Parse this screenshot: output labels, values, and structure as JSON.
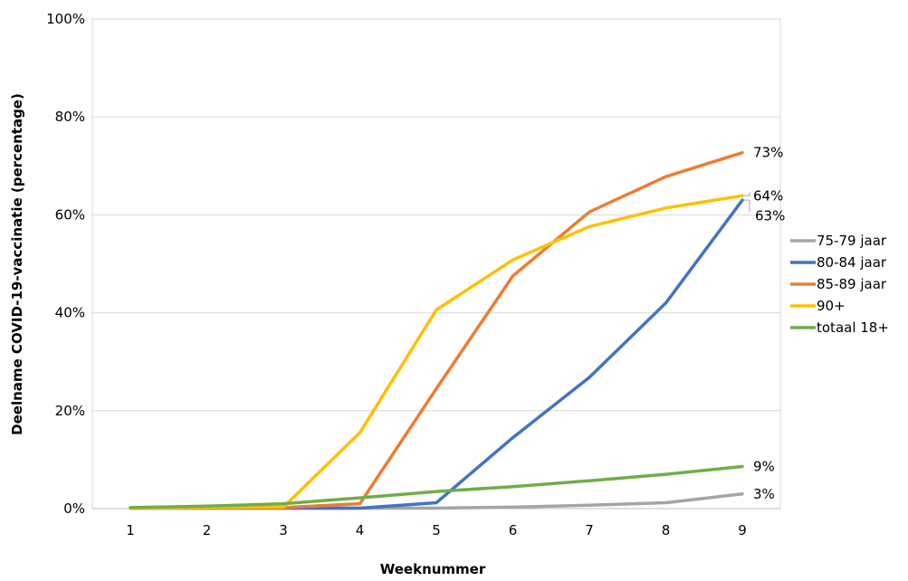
{
  "chart_data": {
    "type": "line",
    "title": "",
    "xlabel": "Weeknummer",
    "ylabel": "Deelname COVID-19-vaccinatie  (percentage)",
    "x": [
      1,
      2,
      3,
      4,
      5,
      6,
      7,
      8,
      9
    ],
    "ylim": [
      0,
      100
    ],
    "yticks": [
      0,
      20,
      40,
      60,
      80,
      100
    ],
    "ytick_labels": [
      "0%",
      "20%",
      "40%",
      "60%",
      "80%",
      "100%"
    ],
    "grid": "horizontal",
    "legend_position": "right",
    "series": [
      {
        "name": "75-79 jaar",
        "color": "#a5a5a5",
        "values": [
          0.1,
          0.1,
          0.1,
          0.1,
          0.1,
          0.3,
          0.7,
          1.2,
          3.0
        ],
        "end_label": "3%"
      },
      {
        "name": "80-84 jaar",
        "color": "#4472c4",
        "values": [
          0.1,
          0.1,
          0.1,
          0.1,
          1.2,
          14.5,
          26.8,
          42.0,
          63.0
        ],
        "end_label": "63%"
      },
      {
        "name": "85-89 jaar",
        "color": "#ed7d31",
        "values": [
          0.1,
          0.2,
          0.2,
          1.0,
          24.5,
          47.5,
          60.6,
          67.8,
          72.7
        ],
        "end_label": "73%"
      },
      {
        "name": "90+",
        "color": "#ffc000",
        "values": [
          0.1,
          0.2,
          0.3,
          15.5,
          40.6,
          50.8,
          57.6,
          61.4,
          63.9
        ],
        "end_label": "64%"
      },
      {
        "name": "totaal 18+",
        "color": "#70ad47",
        "values": [
          0.2,
          0.5,
          1.0,
          2.2,
          3.5,
          4.5,
          5.7,
          7.0,
          8.6
        ],
        "end_label": "9%"
      }
    ]
  }
}
